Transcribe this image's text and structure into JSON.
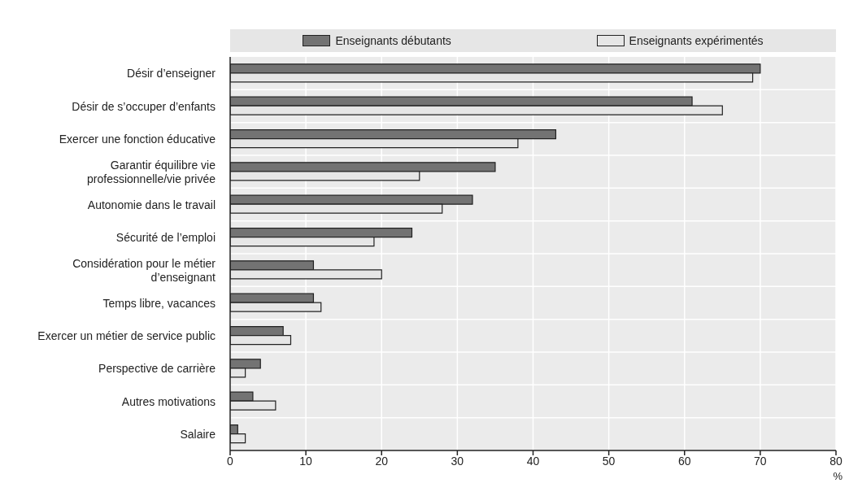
{
  "chart_data": {
    "type": "bar",
    "orientation": "horizontal",
    "xlabel": "%",
    "categories": [
      "Désir d’enseigner",
      "Désir de s’occuper d’enfants",
      "Exercer une fonction éducative",
      "Garantir équilibre vie professionnelle/vie privée",
      "Autonomie dans le travail",
      "Sécurité de l’emploi",
      "Considération pour le métier d’enseignant",
      "Temps libre, vacances",
      "Exercer un métier de service public",
      "Perspective de carrière",
      "Autres motivations",
      "Salaire"
    ],
    "series": [
      {
        "name": "Enseignants débutants",
        "color": "#737373",
        "values": [
          70,
          61,
          43,
          35,
          32,
          24,
          11,
          11,
          7,
          4,
          3,
          1
        ]
      },
      {
        "name": "Enseignants expérimentés",
        "color": "#e6e6e6",
        "values": [
          69,
          65,
          38,
          25,
          28,
          19,
          20,
          12,
          8,
          2,
          6,
          2
        ]
      }
    ],
    "xlim": [
      0,
      80
    ],
    "xticks": [
      0,
      10,
      20,
      30,
      40,
      50,
      60,
      70,
      80
    ],
    "grid": true,
    "legend": "top"
  }
}
